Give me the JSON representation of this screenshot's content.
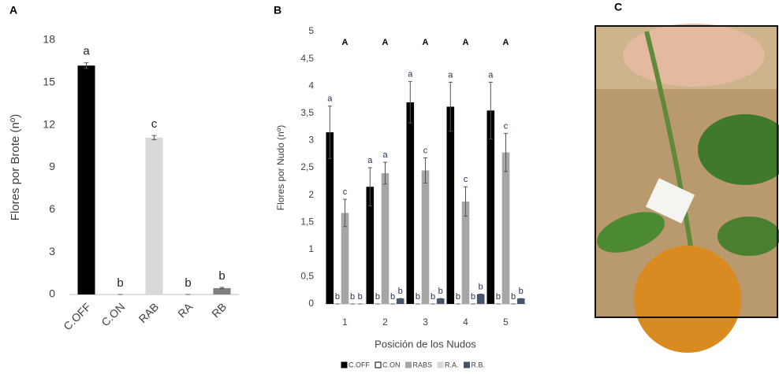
{
  "chart_data": [
    {
      "type": "bar",
      "panel_label": "A",
      "y_label": "Flores por Brote (nº)",
      "categories": [
        "C.OFF",
        "C.ON",
        "RAB",
        "RA",
        "RB"
      ],
      "values": [
        16.2,
        0,
        11.1,
        0,
        0.45
      ],
      "errors": [
        0.2,
        0,
        0.15,
        0,
        0.05
      ],
      "letters": [
        "a",
        "b",
        "c",
        "b",
        "b"
      ],
      "colors": [
        "#000000",
        "#ffffff",
        "#d9d9d9",
        "#ffffff",
        "#7f7f7f"
      ],
      "ylim": [
        0,
        18
      ],
      "yticks": [
        0,
        3,
        6,
        9,
        12,
        15,
        18
      ],
      "grid": false
    },
    {
      "type": "bar",
      "panel_label": "B",
      "x_label": "Posición de los Nudos",
      "y_label": "Flores por Nudo (nº)",
      "categories": [
        "1",
        "2",
        "3",
        "4",
        "5"
      ],
      "group_labels": [
        "A",
        "A",
        "A",
        "A",
        "A"
      ],
      "series": [
        {
          "name": "C.OFF",
          "color": "#000000",
          "values": [
            3.15,
            2.15,
            3.7,
            3.62,
            3.55
          ],
          "errors": [
            0.48,
            0.35,
            0.38,
            0.45,
            0.52
          ],
          "letters": [
            "a",
            "a",
            "a",
            "a",
            "a"
          ]
        },
        {
          "name": "C.ON",
          "color": "#ffffff",
          "values": [
            0,
            0,
            0,
            0,
            0
          ],
          "errors": [
            0,
            0,
            0,
            0,
            0
          ],
          "letters": [
            "b",
            "b",
            "b",
            "b",
            "b"
          ]
        },
        {
          "name": "RABS",
          "color": "#a6a6a6",
          "values": [
            1.67,
            2.4,
            2.45,
            1.88,
            2.78
          ],
          "errors": [
            0.25,
            0.2,
            0.23,
            0.27,
            0.35
          ],
          "letters": [
            "c",
            "a",
            "c",
            "c",
            "c"
          ]
        },
        {
          "name": "R.A.",
          "color": "#d9d9d9",
          "values": [
            0,
            0,
            0,
            0,
            0
          ],
          "errors": [
            0,
            0,
            0,
            0,
            0
          ],
          "letters": [
            "b",
            "b",
            "b",
            "b",
            "b"
          ]
        },
        {
          "name": "R.B.",
          "color": "#44546a",
          "values": [
            0,
            0.1,
            0.1,
            0.18,
            0.1
          ],
          "errors": [
            0,
            0,
            0,
            0,
            0
          ],
          "letters": [
            "b",
            "b",
            "b",
            "b",
            "b"
          ]
        }
      ],
      "ylim": [
        0,
        5
      ],
      "yticks": [
        0,
        {
          "value": 0.5,
          "label": "0,5"
        },
        1,
        {
          "value": 1.5,
          "label": "1,5"
        },
        2,
        {
          "value": 2.5,
          "label": "2,5"
        },
        3,
        {
          "value": 3.5,
          "label": "3,5"
        },
        4,
        {
          "value": 4.5,
          "label": "4,5"
        },
        5
      ],
      "legend": "bottom",
      "grid": false
    }
  ],
  "photo": {
    "panel_label": "C"
  }
}
